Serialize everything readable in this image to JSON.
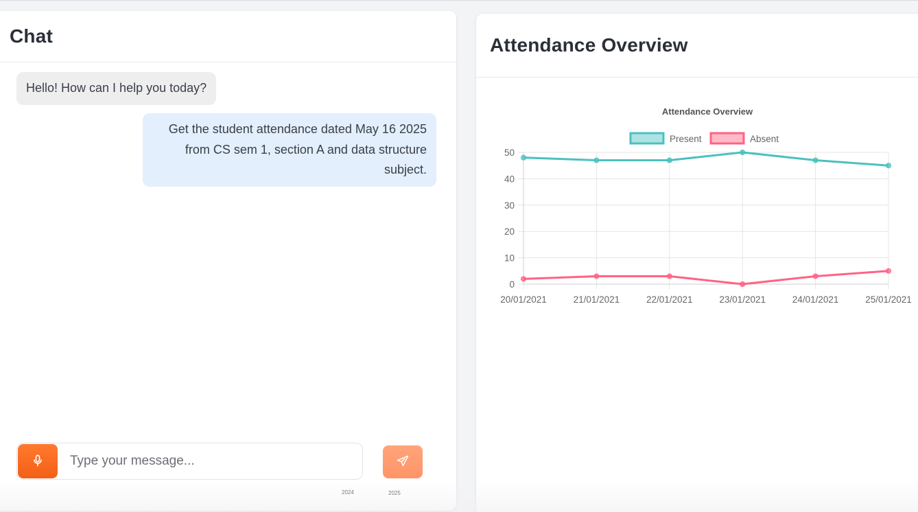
{
  "chat": {
    "title": "Chat",
    "messages": [
      {
        "role": "bot",
        "text": "Hello! How can I help you today?"
      },
      {
        "role": "user",
        "text": "Get the student attendance dated May 16 2025 from CS sem 1, section A and data structure subject."
      }
    ],
    "input": {
      "placeholder": "Type your message...",
      "value": ""
    },
    "mic_icon": "microphone-icon",
    "send_icon": "send-icon",
    "years": [
      "2024",
      "2025"
    ]
  },
  "attendance": {
    "title": "Attendance Overview"
  },
  "colors": {
    "present": "#4bc0c0",
    "absent": "#ff6384",
    "mic_button": "#f96a1f",
    "send_button": "#ff9b70",
    "user_bubble": "#e3effd",
    "bot_bubble": "#eeeeef"
  },
  "chart_data": {
    "type": "line",
    "title": "Attendance Overview",
    "categories": [
      "20/01/2021",
      "21/01/2021",
      "22/01/2021",
      "23/01/2021",
      "24/01/2021",
      "25/01/2021"
    ],
    "series": [
      {
        "name": "Present",
        "values": [
          48,
          47,
          47,
          50,
          47,
          45
        ],
        "color": "#4bc0c0"
      },
      {
        "name": "Absent",
        "values": [
          2,
          3,
          3,
          0,
          3,
          5
        ],
        "color": "#ff6384"
      }
    ],
    "ylim": [
      0,
      50
    ],
    "yticks": [
      0,
      10,
      20,
      30,
      40,
      50
    ],
    "grid": true,
    "legend": "top"
  }
}
